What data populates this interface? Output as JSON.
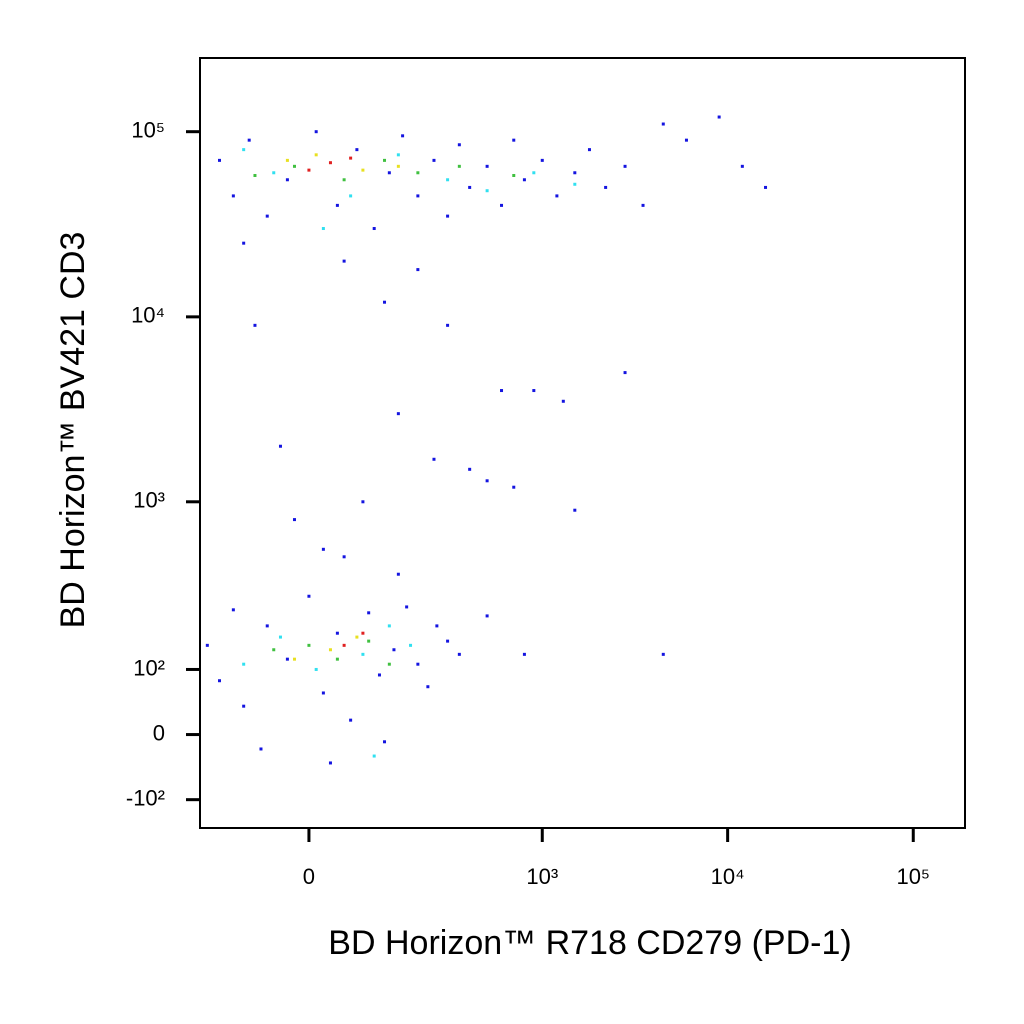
{
  "chart_data": {
    "type": "scatter",
    "x_label": "BD Horizon™ R718 CD279 (PD-1)",
    "y_label": "BD Horizon™ BV421   CD3",
    "scale": "biexponential",
    "xlim": [
      -200,
      190000
    ],
    "ylim": [
      -160,
      250000
    ],
    "xticks": [
      0,
      {
        "value": 1000,
        "label": "10³"
      },
      {
        "value": 10000,
        "label": "10⁴"
      },
      {
        "value": 100000,
        "label": "10⁵"
      }
    ],
    "yticks": [
      {
        "value": -100,
        "label": "-10²"
      },
      0,
      {
        "value": 100,
        "label": "10²"
      },
      {
        "value": 1000,
        "label": "10³"
      },
      {
        "value": 10000,
        "label": "10⁴"
      },
      {
        "value": 100000,
        "label": "10⁵"
      }
    ],
    "series": [
      {
        "color": "#1414e0",
        "x": [
          -150,
          -120,
          -90,
          -60,
          -30,
          10,
          40,
          70,
          100,
          130,
          160,
          200,
          250,
          300,
          350,
          400,
          500,
          600,
          700,
          800,
          1000,
          1200,
          1500,
          1800,
          2200,
          2800,
          3500,
          4500,
          6000,
          9000,
          12000,
          16000,
          -100,
          50,
          200,
          120,
          -80,
          300,
          600,
          900,
          2800,
          1300,
          150,
          -40,
          250,
          400,
          500,
          700,
          1500,
          20,
          -20,
          80,
          -180,
          -150,
          -120,
          -100,
          -60,
          -30,
          0,
          20,
          40,
          60,
          90,
          110,
          140,
          170,
          200,
          230,
          260,
          300,
          -70,
          30,
          120,
          350,
          500,
          800,
          4500,
          150,
          50
        ],
        "y": [
          70000,
          45000,
          90000,
          35000,
          55000,
          100000,
          40000,
          80000,
          30000,
          60000,
          95000,
          45000,
          70000,
          35000,
          85000,
          50000,
          65000,
          40000,
          90000,
          55000,
          70000,
          45000,
          60000,
          80000,
          50000,
          65000,
          40000,
          110000,
          90000,
          120000,
          65000,
          50000,
          25000,
          20000,
          18000,
          12000,
          9000,
          9000,
          4000,
          4000,
          5000,
          3500,
          3000,
          2000,
          1700,
          1500,
          1300,
          1200,
          900,
          550,
          800,
          1000,
          150,
          80,
          250,
          40,
          200,
          120,
          300,
          60,
          180,
          20,
          240,
          90,
          140,
          260,
          110,
          70,
          200,
          160,
          -20,
          -40,
          -10,
          130,
          230,
          130,
          130,
          400,
          500
        ]
      },
      {
        "color": "#30e0f0",
        "x": [
          -50,
          60,
          150,
          300,
          500,
          900,
          1500,
          -100,
          20,
          -40,
          80,
          130,
          10,
          180,
          -100,
          100
        ],
        "y": [
          60000,
          45000,
          75000,
          55000,
          48000,
          60000,
          52000,
          80000,
          30000,
          170,
          130,
          200,
          100,
          150,
          110,
          -30
        ]
      },
      {
        "color": "#40c040",
        "x": [
          -20,
          50,
          120,
          200,
          350,
          700,
          -80,
          0,
          40,
          90,
          -50,
          130
        ],
        "y": [
          65000,
          55000,
          70000,
          60000,
          65000,
          58000,
          58000,
          150,
          120,
          160,
          140,
          110
        ]
      },
      {
        "color": "#e8e020",
        "x": [
          10,
          80,
          -30,
          150,
          30,
          70,
          -20
        ],
        "y": [
          75000,
          62000,
          70000,
          65000,
          140,
          170,
          120
        ]
      },
      {
        "color": "#e02020",
        "x": [
          30,
          60,
          0,
          50,
          80
        ],
        "y": [
          68000,
          72000,
          62000,
          150,
          180
        ]
      }
    ]
  }
}
